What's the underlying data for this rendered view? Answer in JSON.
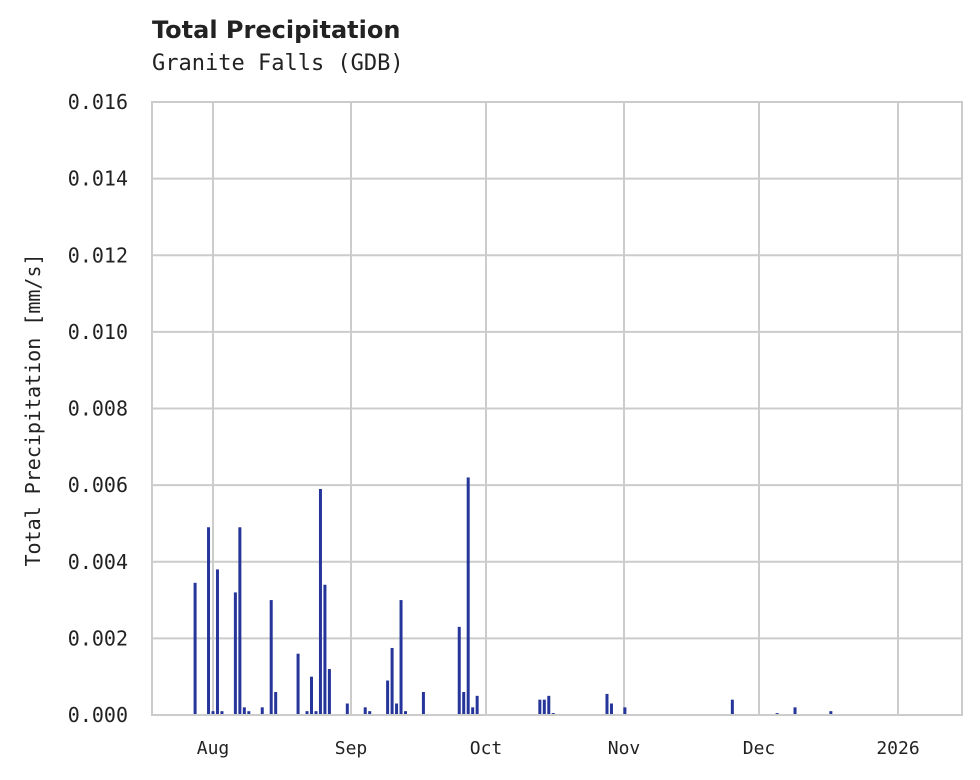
{
  "chart_data": {
    "type": "bar",
    "title": "Total Precipitation",
    "subtitle": "Granite Falls (GDB)",
    "xlabel": "",
    "ylabel": "Total Precipitation [mm/s]",
    "ylim": [
      0,
      0.016
    ],
    "yticks": [
      "0.000",
      "0.002",
      "0.004",
      "0.006",
      "0.008",
      "0.010",
      "0.012",
      "0.014",
      "0.016"
    ],
    "xticks": [
      "Aug",
      "Sep",
      "Oct",
      "Nov",
      "Dec",
      "2026"
    ],
    "grid": true,
    "legend": "none",
    "bar_color": "#26359a",
    "x_range": [
      "2025-07-27",
      "2026-01-15"
    ],
    "series": [
      {
        "name": "Total Precipitation",
        "points": [
          {
            "date": "2025-07-28",
            "value": 0.00345
          },
          {
            "date": "2025-07-31",
            "value": 0.0049
          },
          {
            "date": "2025-08-01",
            "value": 0.0001
          },
          {
            "date": "2025-08-02",
            "value": 0.0038
          },
          {
            "date": "2025-08-03",
            "value": 0.0001
          },
          {
            "date": "2025-08-06",
            "value": 0.0032
          },
          {
            "date": "2025-08-07",
            "value": 0.0049
          },
          {
            "date": "2025-08-08",
            "value": 0.0002
          },
          {
            "date": "2025-08-09",
            "value": 0.0001
          },
          {
            "date": "2025-08-12",
            "value": 0.0002
          },
          {
            "date": "2025-08-14",
            "value": 0.003
          },
          {
            "date": "2025-08-15",
            "value": 0.0006
          },
          {
            "date": "2025-08-20",
            "value": 0.0016
          },
          {
            "date": "2025-08-22",
            "value": 0.0001
          },
          {
            "date": "2025-08-23",
            "value": 0.001
          },
          {
            "date": "2025-08-24",
            "value": 0.0001
          },
          {
            "date": "2025-08-25",
            "value": 0.0059
          },
          {
            "date": "2025-08-26",
            "value": 0.0034
          },
          {
            "date": "2025-08-27",
            "value": 0.0012
          },
          {
            "date": "2025-08-31",
            "value": 0.0003
          },
          {
            "date": "2025-09-04",
            "value": 0.0002
          },
          {
            "date": "2025-09-05",
            "value": 0.0001
          },
          {
            "date": "2025-09-09",
            "value": 0.0009
          },
          {
            "date": "2025-09-10",
            "value": 0.00175
          },
          {
            "date": "2025-09-11",
            "value": 0.0003
          },
          {
            "date": "2025-09-12",
            "value": 0.003
          },
          {
            "date": "2025-09-13",
            "value": 0.0001
          },
          {
            "date": "2025-09-17",
            "value": 0.0006
          },
          {
            "date": "2025-09-25",
            "value": 0.0023
          },
          {
            "date": "2025-09-26",
            "value": 0.0006
          },
          {
            "date": "2025-09-27",
            "value": 0.0062
          },
          {
            "date": "2025-09-28",
            "value": 0.0002
          },
          {
            "date": "2025-09-29",
            "value": 0.0005
          },
          {
            "date": "2025-10-13",
            "value": 0.0004
          },
          {
            "date": "2025-10-14",
            "value": 0.0004
          },
          {
            "date": "2025-10-15",
            "value": 0.0005
          },
          {
            "date": "2025-10-16",
            "value": 5e-05
          },
          {
            "date": "2025-10-28",
            "value": 0.00055
          },
          {
            "date": "2025-10-29",
            "value": 0.0003
          },
          {
            "date": "2025-11-01",
            "value": 0.0002
          },
          {
            "date": "2025-11-25",
            "value": 0.0004
          },
          {
            "date": "2025-12-05",
            "value": 5e-05
          },
          {
            "date": "2025-12-09",
            "value": 0.0002
          },
          {
            "date": "2025-12-17",
            "value": 0.0001
          }
        ]
      }
    ]
  }
}
